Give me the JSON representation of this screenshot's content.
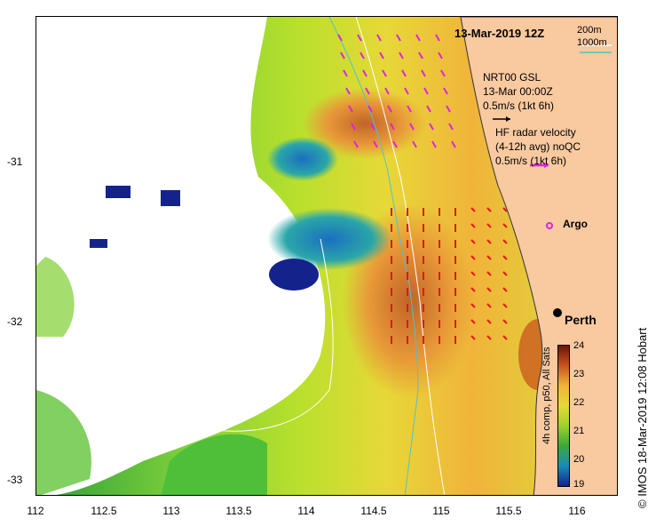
{
  "map": {
    "title": "13-Mar-2019 12Z",
    "contours": [
      "200m",
      "1000m"
    ],
    "glider": {
      "name": "NRT00 GSL",
      "time": "13-Mar 00:00Z",
      "scale": "0.5m/s (1kt 6h)"
    },
    "hf_radar": {
      "title": "HF radar velocity",
      "subtitle": "(4-12h avg) noQC",
      "scale": "0.5m/s (1kt 6h)"
    },
    "argo_label": "Argo",
    "city": "Perth",
    "x_ticks": [
      "112",
      "112.5",
      "113",
      "113.5",
      "114",
      "114.5",
      "115",
      "115.5",
      "116"
    ],
    "y_ticks": [
      "-31",
      "-32",
      "-33"
    ],
    "colorbar": {
      "title": "4h comp, p50, All Sats",
      "ticks": [
        "24",
        "23",
        "22",
        "21",
        "20",
        "19"
      ],
      "min": 19,
      "max": 24
    },
    "credit": "© IMOS 18-Mar-2019 12:08 Hobart",
    "colors": {
      "land": "#f9c9a0",
      "land_border": "#333333",
      "contour": "#4fc4c8",
      "hf_arrow": "#e01818",
      "glider_arrow": "#e022e0",
      "argo": "#e022e0"
    }
  }
}
